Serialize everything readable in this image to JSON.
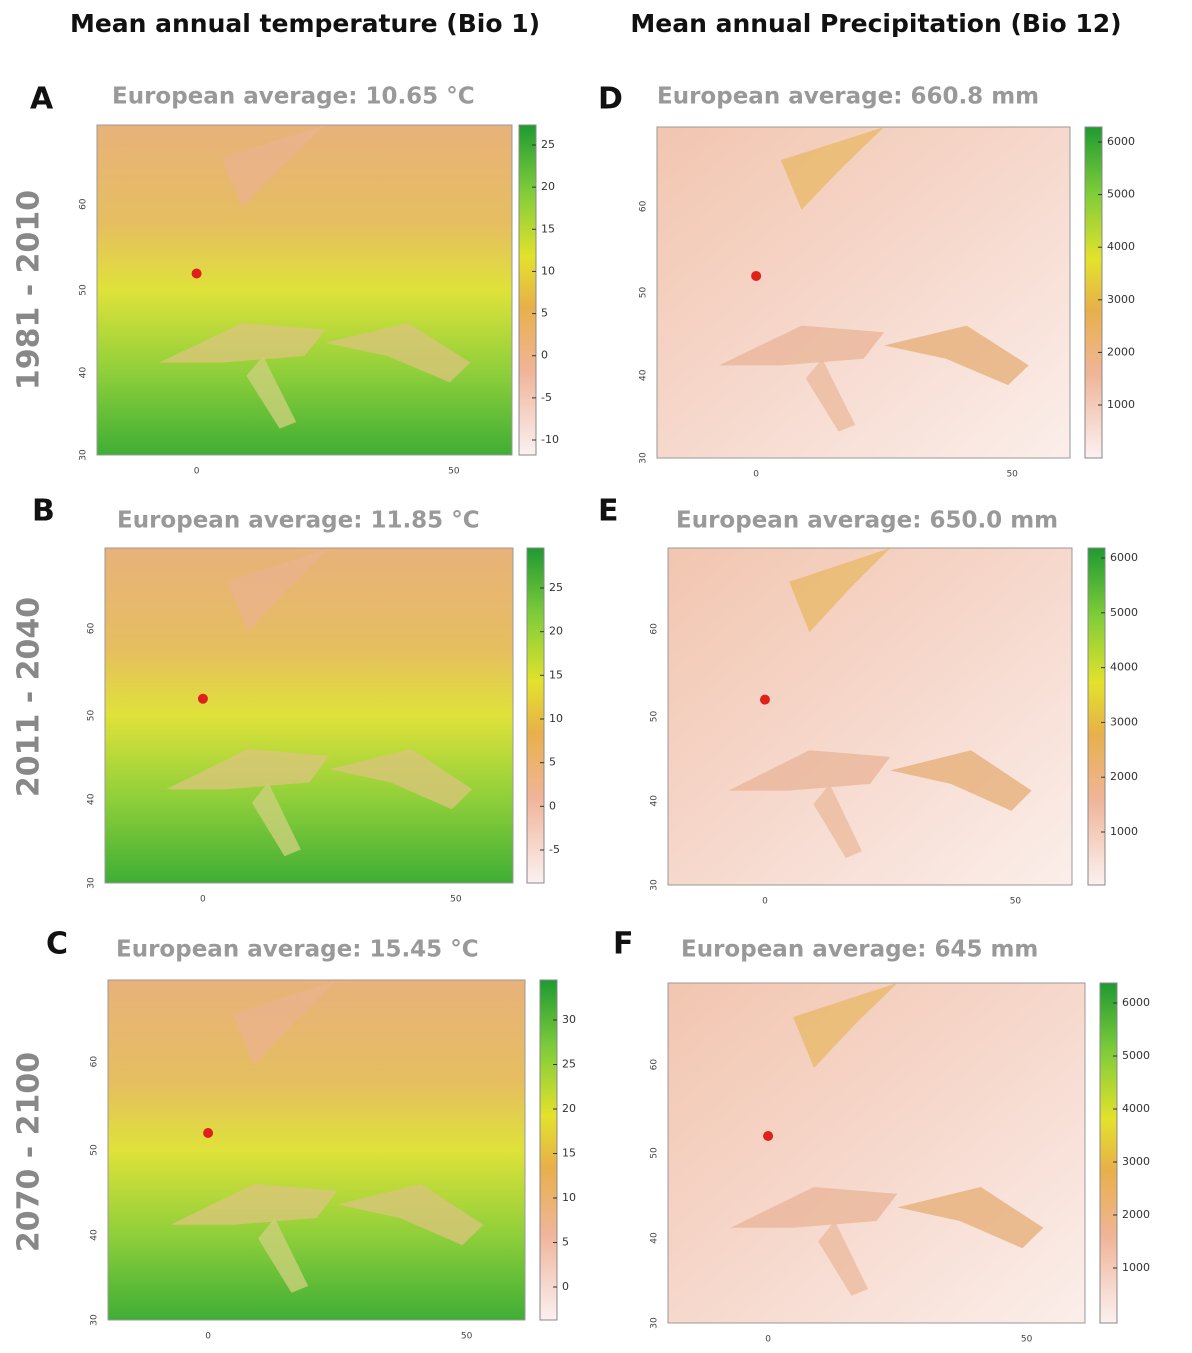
{
  "column_headers": [
    "Mean annual temperature (Bio 1)",
    "Mean annual Precipitation (Bio 12)"
  ],
  "row_labels": [
    "1981 - 2010",
    "2011 - 2040",
    "2070 - 2100"
  ],
  "panels": [
    {
      "letter": "A",
      "subtitle": "European average: 10.65 °C",
      "colorbar_ticks": [
        25,
        20,
        15,
        10,
        5,
        0,
        -5,
        -10
      ],
      "x_ticks": [
        0,
        50
      ],
      "y_ticks": [
        60,
        50,
        40,
        30
      ]
    },
    {
      "letter": "B",
      "subtitle": "European average: 11.85 °C",
      "colorbar_ticks": [
        25,
        20,
        15,
        10,
        5,
        0,
        -5
      ],
      "x_ticks": [
        0,
        50
      ],
      "y_ticks": [
        60,
        50,
        40,
        30
      ]
    },
    {
      "letter": "C",
      "subtitle": "European average: 15.45 °C",
      "colorbar_ticks": [
        30,
        25,
        20,
        15,
        10,
        5,
        0
      ],
      "x_ticks": [
        0,
        50
      ],
      "y_ticks": [
        60,
        50,
        40,
        30
      ]
    },
    {
      "letter": "D",
      "subtitle": "European average: 660.8 mm",
      "colorbar_ticks": [
        6000,
        5000,
        4000,
        3000,
        2000,
        1000
      ],
      "x_ticks": [
        0,
        50
      ],
      "y_ticks": [
        60,
        50,
        40,
        30
      ]
    },
    {
      "letter": "E",
      "subtitle": "European average: 650.0 mm",
      "colorbar_ticks": [
        6000,
        5000,
        4000,
        3000,
        2000,
        1000
      ],
      "x_ticks": [
        0,
        50
      ],
      "y_ticks": [
        60,
        50,
        40,
        30
      ]
    },
    {
      "letter": "F",
      "subtitle": "European average: 645 mm",
      "colorbar_ticks": [
        6000,
        5000,
        4000,
        3000,
        2000,
        1000
      ],
      "x_ticks": [
        0,
        50
      ],
      "y_ticks": [
        60,
        50,
        40,
        30
      ]
    }
  ]
}
